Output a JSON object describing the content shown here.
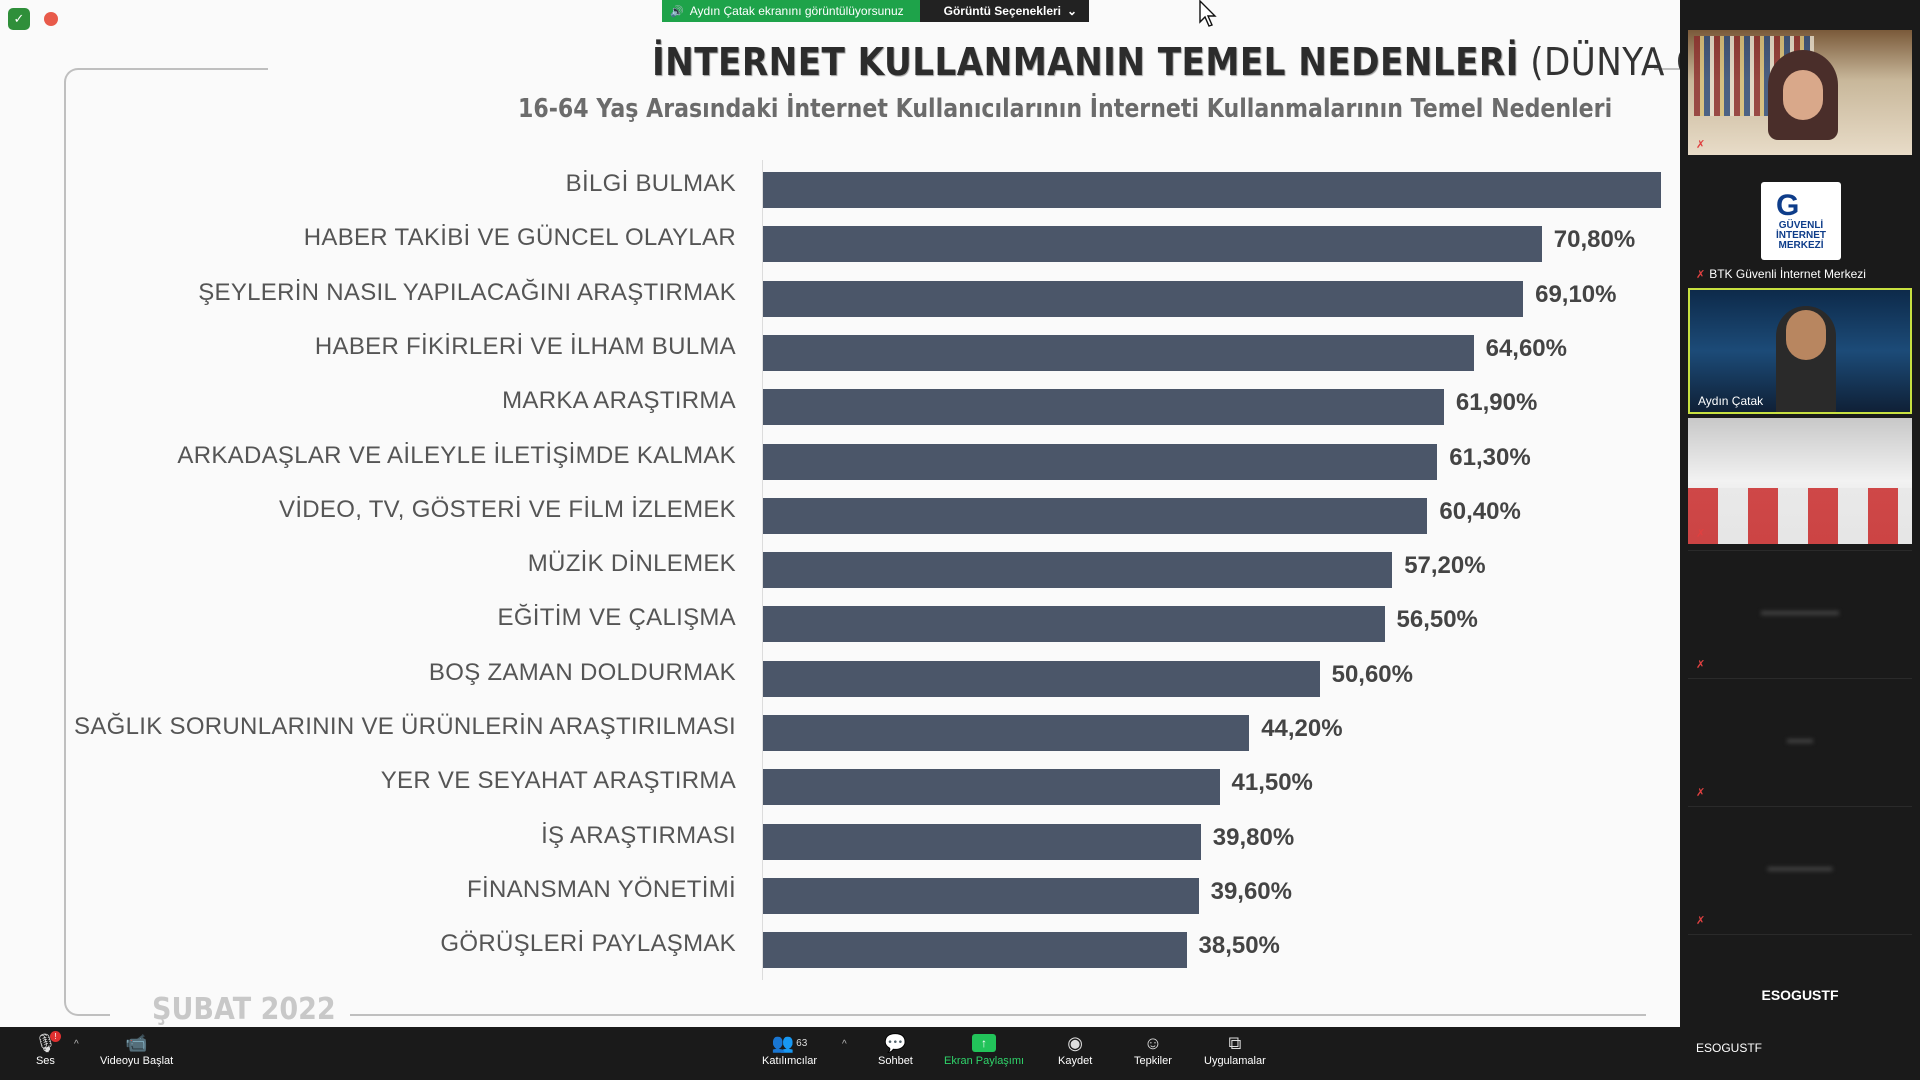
{
  "share_banner": {
    "status": "Aydın Çatak ekranını görüntülüyorsunuz",
    "options": "Görüntü Seçenekleri"
  },
  "slide": {
    "title_bold": "İNTERNET KULLANMANIN TEMEL NEDENLERİ",
    "title_plain": " (DÜNYA GENELİ)",
    "subtitle": "16-64 Yaş Arasındaki İnternet Kullanıcılarının İnterneti Kullanmalarının Temel Nedenleri",
    "footer": "ŞUBAT 2022"
  },
  "chart_data": {
    "type": "bar",
    "orientation": "horizontal",
    "categories": [
      "BİLGİ BULMAK",
      "HABER TAKİBİ VE GÜNCEL OLAYLAR",
      "ŞEYLERİN NASIL YAPILACAĞINI ARAŞTIRMAK",
      "HABER FİKİRLERİ VE İLHAM BULMA",
      "MARKA ARAŞTIRMA",
      "ARKADAŞLAR VE AİLEYLE İLETİŞİMDE KALMAK",
      "VİDEO, TV, GÖSTERİ VE FİLM İZLEMEK",
      "MÜZİK DİNLEMEK",
      "EĞİTİM VE ÇALIŞMA",
      "BOŞ ZAMAN DOLDURMAK",
      "SAĞLIK SORUNLARININ VE ÜRÜNLERİN ARAŞTIRILMASI",
      "YER VE SEYAHAT ARAŞTIRMA",
      "İŞ ARAŞTIRMASI",
      "FİNANSMAN YÖNETİMİ",
      "GÖRÜŞLERİ PAYLAŞMAK"
    ],
    "values": [
      81.6,
      70.8,
      69.1,
      64.6,
      61.9,
      61.3,
      60.4,
      57.2,
      56.5,
      50.6,
      44.2,
      41.5,
      39.8,
      39.6,
      38.5
    ],
    "value_labels": [
      "",
      "70,80%",
      "69,10%",
      "64,60%",
      "61,90%",
      "61,30%",
      "60,40%",
      "57,20%",
      "56,50%",
      "50,60%",
      "44,20%",
      "41,50%",
      "39,80%",
      "39,60%",
      "38,50%"
    ],
    "bar_color": "#4b5669",
    "xlim": [
      0,
      100
    ]
  },
  "participants": {
    "logo_line1": "GÜVENLİ",
    "logo_line2": "İNTERNET",
    "logo_line3": "MERKEZİ",
    "btk_name": "BTK Güvenli İnternet Merkezi",
    "presenter_name": "Aydın Çatak",
    "esogustf_center": "ESOGUSTF",
    "esogustf_name": "ESOGUSTF"
  },
  "toolbar": {
    "audio": "Ses",
    "audio_badge": "!",
    "video": "Videoyu Başlat",
    "participants": "Katılımcılar",
    "participants_count": "63",
    "chat": "Sohbet",
    "share": "Ekran Paylaşımı",
    "record": "Kaydet",
    "reactions": "Tepkiler",
    "apps": "Uygulamalar"
  }
}
